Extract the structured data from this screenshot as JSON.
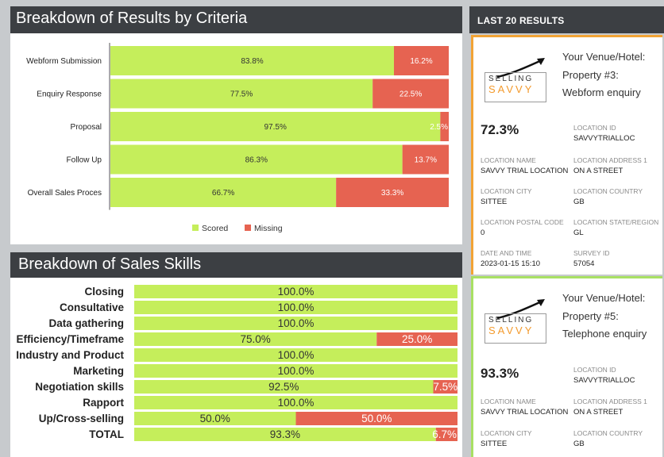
{
  "chart_data": [
    {
      "type": "bar",
      "stacked": true,
      "orientation": "horizontal",
      "title": "Breakdown of Results by Criteria",
      "categories": [
        "Webform Submission",
        "Enquiry Response",
        "Proposal",
        "Follow Up",
        "Overall Sales Proces"
      ],
      "series": [
        {
          "name": "Scored",
          "values": [
            83.8,
            77.5,
            97.5,
            86.3,
            66.7
          ],
          "labels": [
            "83.8%",
            "77.5%",
            "97.5%",
            "86.3%",
            "66.7%"
          ],
          "color": "#c5ee5b"
        },
        {
          "name": "Missing",
          "values": [
            16.2,
            22.5,
            2.5,
            13.7,
            33.3
          ],
          "labels": [
            "16.2%",
            "22.5%",
            "2.5%",
            "13.7%",
            "33.3%"
          ],
          "color": "#e66351"
        }
      ],
      "xlim": [
        0,
        100
      ],
      "legend": "bottom"
    },
    {
      "type": "bar",
      "stacked": true,
      "orientation": "horizontal",
      "title": "Breakdown of Sales Skills",
      "categories": [
        "Closing",
        "Consultative",
        "Data gathering",
        "Efficiency/Timeframe",
        "Industry and Product",
        "Marketing",
        "Negotiation skills",
        "Rapport",
        "Up/Cross-selling",
        "TOTAL"
      ],
      "series": [
        {
          "name": "Scored",
          "values": [
            100.0,
            100.0,
            100.0,
            75.0,
            100.0,
            100.0,
            92.5,
            100.0,
            50.0,
            93.3
          ],
          "labels": [
            "100.0%",
            "100.0%",
            "100.0%",
            "75.0%",
            "100.0%",
            "100.0%",
            "92.5%",
            "100.0%",
            "50.0%",
            "93.3%"
          ],
          "color": "#c5ee5b"
        },
        {
          "name": "Missing",
          "values": [
            0,
            0,
            0,
            25.0,
            0,
            0,
            7.5,
            0,
            50.0,
            6.7
          ],
          "labels": [
            "",
            "",
            "",
            "25.0%",
            "",
            "",
            "7.5%",
            "",
            "50.0%",
            "6.7%"
          ],
          "color": "#e66351"
        }
      ],
      "xlim": [
        0,
        100
      ]
    }
  ],
  "sidebar": {
    "title": "LAST 20 RESULTS",
    "logo": {
      "line1": "SELLING",
      "line2": "SAVVY"
    },
    "cards": [
      {
        "title": "Your Venue/Hotel: Property #3: Webform enquiry",
        "score": "72.3%",
        "accent": "#f2a335",
        "fields": [
          {
            "label": "LOCATION ID",
            "value": "SAVVYTRIALLOC"
          },
          {
            "label": "LOCATION NAME",
            "value": "SAVVY TRIAL LOCATION"
          },
          {
            "label": "LOCATION ADDRESS 1",
            "value": "ON A STREET"
          },
          {
            "label": "LOCATION CITY",
            "value": "SITTEE"
          },
          {
            "label": "LOCATION COUNTRY",
            "value": "GB"
          },
          {
            "label": "LOCATION POSTAL CODE",
            "value": "0"
          },
          {
            "label": "LOCATION STATE/REGION",
            "value": "GL"
          },
          {
            "label": "DATE AND TIME",
            "value": "2023-01-15 15:10"
          },
          {
            "label": "SURVEY ID",
            "value": "57054"
          }
        ]
      },
      {
        "title": "Your Venue/Hotel: Property #5: Telephone enquiry",
        "score": "93.3%",
        "accent": "#a8e063",
        "fields": [
          {
            "label": "LOCATION ID",
            "value": "SAVVYTRIALLOC"
          },
          {
            "label": "LOCATION NAME",
            "value": "SAVVY TRIAL LOCATION"
          },
          {
            "label": "LOCATION ADDRESS 1",
            "value": "ON A STREET"
          },
          {
            "label": "LOCATION CITY",
            "value": "SITTEE"
          },
          {
            "label": "LOCATION COUNTRY",
            "value": "GB"
          }
        ]
      }
    ]
  }
}
